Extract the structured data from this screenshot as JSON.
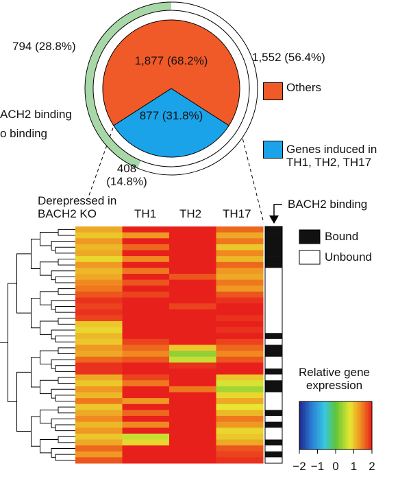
{
  "chart_data": [
    {
      "type": "pie",
      "categories": [
        "Others",
        "Genes induced in TH1, TH2, TH17"
      ],
      "values": [
        1877,
        877
      ],
      "value_labels": [
        "1,877 (68.2%)",
        "877 (31.8%)"
      ],
      "colors": [
        "#f05a28",
        "#1aa3e8"
      ]
    },
    {
      "type": "donut",
      "values": [
        1552,
        408,
        794
      ],
      "value_labels": [
        "1,552 (56.4%)",
        "408 (14.8%)",
        "794 (28.8%)"
      ],
      "colors": [
        "#ffffff",
        "#a8d8a8",
        "#a8d8a8"
      ],
      "legend": [
        "ACH2 binding",
        "o binding"
      ]
    },
    {
      "type": "heatmap",
      "columns": [
        "Derepressed in BACH2 KO",
        "TH1",
        "TH2",
        "TH17"
      ],
      "rows": [
        [
          1.2,
          2,
          2,
          1.6
        ],
        [
          1.0,
          1.3,
          2,
          1.2
        ],
        [
          1.3,
          2,
          2,
          1.5
        ],
        [
          1.1,
          1.6,
          2,
          1.0
        ],
        [
          1.2,
          2,
          2,
          1.4
        ],
        [
          0.9,
          1.4,
          2,
          1.1
        ],
        [
          1.3,
          2,
          2,
          1.6
        ],
        [
          1.1,
          1.5,
          2,
          1.3
        ],
        [
          1.2,
          2,
          1.7,
          1.2
        ],
        [
          1.4,
          1.7,
          2,
          1.5
        ],
        [
          1.5,
          2,
          2,
          1.3
        ],
        [
          1.7,
          1.8,
          2,
          1.7
        ],
        [
          1.9,
          2,
          2,
          1.9
        ],
        [
          1.8,
          2,
          1.8,
          2
        ],
        [
          1.9,
          2,
          2,
          2
        ],
        [
          1.8,
          2,
          2,
          1.9
        ],
        [
          1.0,
          2,
          2,
          2
        ],
        [
          0.9,
          2,
          2,
          1.9
        ],
        [
          1.1,
          2,
          2,
          2
        ],
        [
          1.0,
          1.8,
          2,
          1.8
        ],
        [
          1.3,
          1.6,
          1.0,
          1.6
        ],
        [
          1.2,
          1.4,
          0.3,
          1.4
        ],
        [
          1.6,
          1.7,
          0.6,
          1.7
        ],
        [
          1.9,
          2,
          1.9,
          2
        ],
        [
          1.9,
          2,
          2,
          2
        ],
        [
          1.2,
          1.8,
          2,
          1.0
        ],
        [
          1.0,
          1.5,
          2,
          0.7
        ],
        [
          1.3,
          2,
          1.5,
          0.4
        ],
        [
          1.1,
          2,
          2,
          0.9
        ],
        [
          1.5,
          1.3,
          2,
          1.2
        ],
        [
          1.0,
          2,
          2,
          0.8
        ],
        [
          1.2,
          1.6,
          2,
          1.1
        ],
        [
          1.4,
          2,
          2,
          1.5
        ],
        [
          1.1,
          1.4,
          2,
          1.3
        ],
        [
          1.3,
          2,
          2,
          0.9
        ],
        [
          1.0,
          0.6,
          2,
          1.0
        ],
        [
          1.2,
          0.9,
          2,
          1.2
        ],
        [
          1.6,
          2,
          2,
          1.7
        ],
        [
          1.3,
          2,
          2,
          1.8
        ],
        [
          1.7,
          2,
          2,
          1.9
        ]
      ],
      "binding": [
        1,
        1,
        1,
        1,
        1,
        1,
        1,
        0,
        0,
        0,
        0,
        0,
        0,
        0,
        0,
        0,
        0,
        0,
        1,
        0,
        1,
        1,
        0,
        0,
        1,
        0,
        1,
        1,
        0,
        0,
        0,
        1,
        0,
        1,
        0,
        0,
        1,
        0,
        1,
        0
      ],
      "binding_title": "BACH2 binding",
      "binding_legend": [
        "Bound",
        "Unbound"
      ],
      "colorbar": {
        "title": "Relative gene expression",
        "clim": [
          -2,
          2
        ],
        "ticks": [
          {
            "value": -2,
            "label": "−2"
          },
          {
            "value": -1,
            "label": "−1"
          },
          0,
          1,
          2
        ]
      }
    }
  ]
}
